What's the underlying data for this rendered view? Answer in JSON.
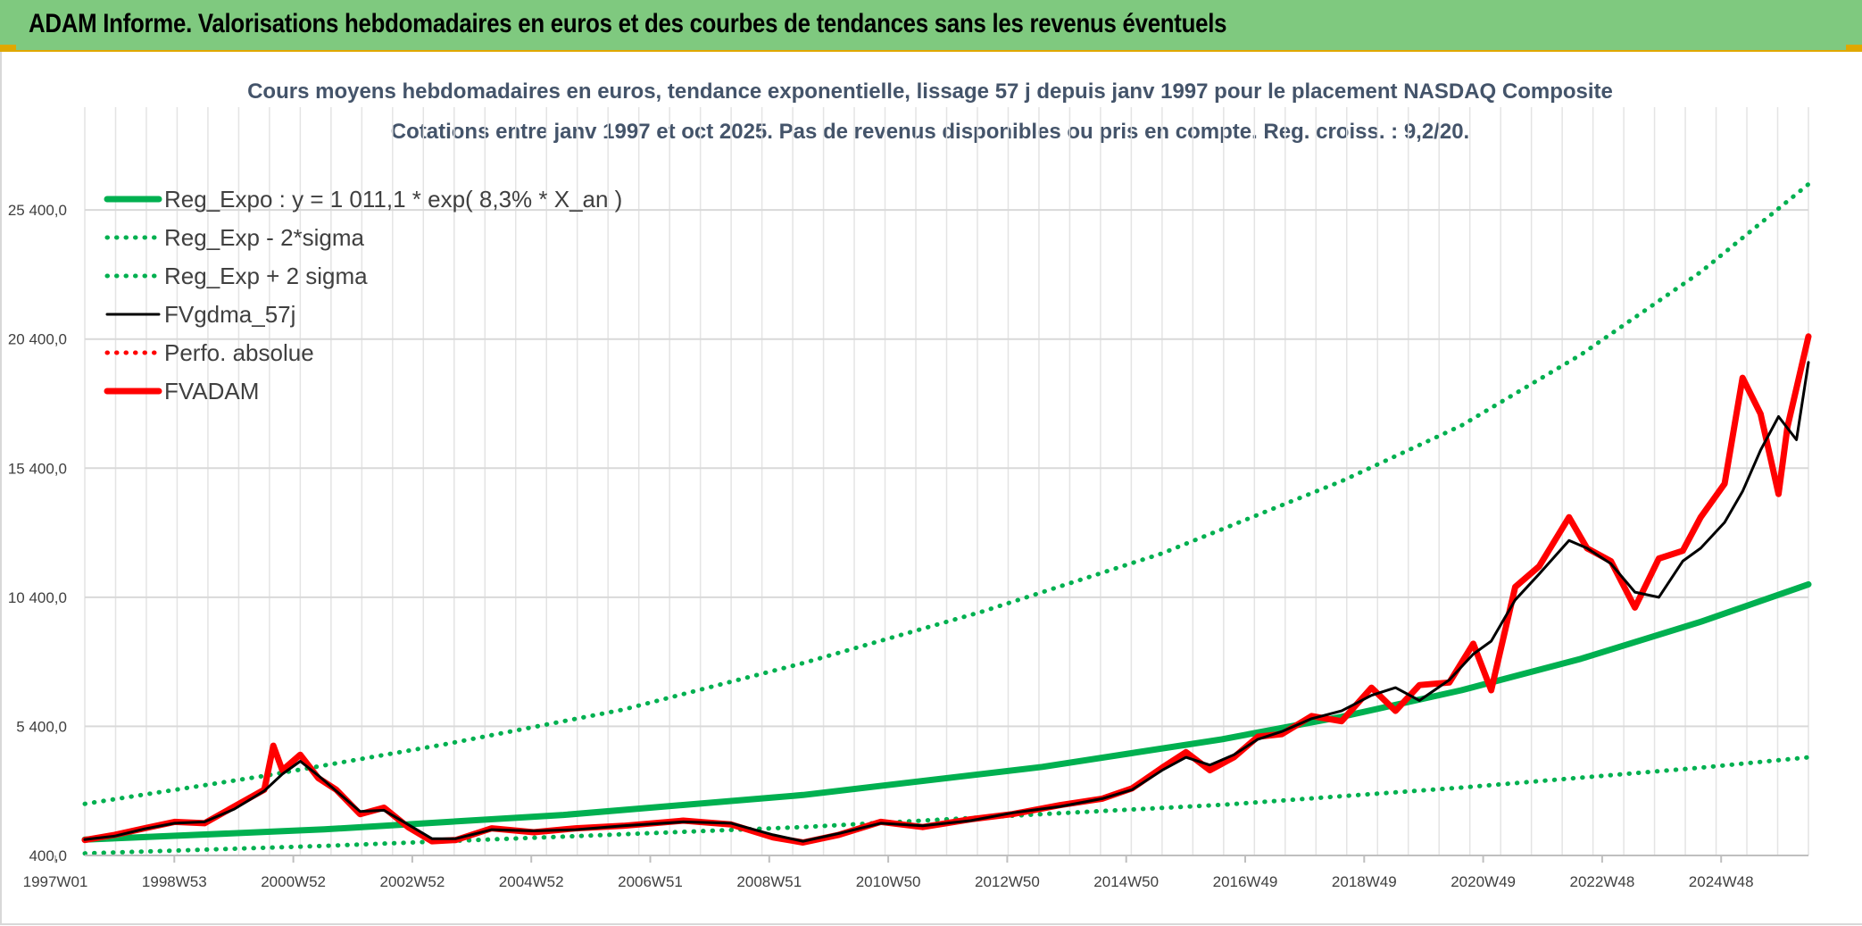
{
  "header": {
    "title": "ADAM Informe. Valorisations hebdomadaires en euros et des courbes de tendances sans les revenus éventuels"
  },
  "colors": {
    "banner": "#7fc97f",
    "regression": "#00b050",
    "gdma": "#000000",
    "adam": "#ff0000",
    "accent": "#e0a800"
  },
  "chart_data": {
    "type": "line",
    "title": "Cours moyens hebdomadaires en euros, tendance exponentielle, lissage 57 j depuis janv 1997 pour le placement NASDAQ Composite",
    "subtitle": "Cotations entre janv 1997 et oct 2025. Pas de revenus disponibles ou pris en compte. Reg. croiss. : 9,2/20.",
    "x_range": [
      1997.0,
      2025.8
    ],
    "x_ticks": [
      "1997W01",
      "1998W53",
      "2000W52",
      "2002W52",
      "2004W52",
      "2006W51",
      "2008W51",
      "2010W50",
      "2012W50",
      "2014W50",
      "2016W49",
      "2018W49",
      "2020W49",
      "2022W48",
      "2024W48"
    ],
    "y_ticks": [
      "400,0",
      "5 400,0",
      "10 400,0",
      "15 400,0",
      "20 400,0",
      "25 400,0"
    ],
    "y_tick_values": [
      400,
      5400,
      10400,
      15400,
      20400,
      25400
    ],
    "ylim": [
      400,
      28000
    ],
    "grid": true,
    "legend_position": "top-left",
    "series": [
      {
        "name": "Reg_Expo : y = 1 011,1 * exp( 8,3% *  X_an )",
        "style": "solid-thick",
        "color": "#00b050",
        "x": [
          1997.0,
          2001.0,
          2005.0,
          2009.0,
          2013.0,
          2016.0,
          2018.0,
          2020.0,
          2022.0,
          2024.0,
          2025.8
        ],
        "y": [
          1011,
          1410,
          1970,
          2740,
          3830,
          4900,
          5770,
          6800,
          8020,
          9450,
          10900
        ]
      },
      {
        "name": "Reg_Exp - 2*sigma",
        "style": "dotted",
        "color": "#00b050",
        "x": [
          1997.0,
          2001.0,
          2005.0,
          2009.0,
          2013.0,
          2016.0,
          2020.0,
          2024.0,
          2025.8
        ],
        "y": [
          480,
          770,
          1130,
          1500,
          2000,
          2360,
          3030,
          3800,
          4200
        ]
      },
      {
        "name": "Reg_Exp + 2 sigma",
        "style": "dotted",
        "color": "#00b050",
        "x": [
          1997.0,
          2000.0,
          2003.0,
          2006.0,
          2009.0,
          2012.0,
          2015.0,
          2018.0,
          2020.0,
          2022.0,
          2024.0,
          2025.8
        ],
        "y": [
          2400,
          3480,
          4700,
          6050,
          7850,
          9850,
          12100,
          14900,
          17050,
          19800,
          23000,
          26400
        ]
      },
      {
        "name": "FVgdma_57j",
        "style": "solid",
        "color": "#000000",
        "x": [
          1997.0,
          1997.5,
          1998.0,
          1998.5,
          1999.0,
          1999.5,
          2000.0,
          2000.3,
          2000.6,
          2000.9,
          2001.2,
          2001.6,
          2002.0,
          2002.4,
          2002.8,
          2003.2,
          2003.8,
          2004.5,
          2005.2,
          2006.0,
          2007.0,
          2007.8,
          2008.5,
          2009.0,
          2009.6,
          2010.3,
          2011.0,
          2011.8,
          2012.5,
          2013.3,
          2014.0,
          2014.5,
          2015.0,
          2015.4,
          2015.8,
          2016.2,
          2016.6,
          2017.0,
          2017.5,
          2018.0,
          2018.5,
          2018.9,
          2019.3,
          2019.8,
          2020.2,
          2020.5,
          2020.9,
          2021.3,
          2021.8,
          2022.1,
          2022.5,
          2022.9,
          2023.3,
          2023.7,
          2024.0,
          2024.4,
          2024.7,
          2025.0,
          2025.3,
          2025.6,
          2025.8
        ],
        "y": [
          1020,
          1150,
          1430,
          1650,
          1700,
          2200,
          2900,
          3550,
          4050,
          3500,
          2900,
          2100,
          2150,
          1600,
          1050,
          1050,
          1400,
          1350,
          1400,
          1550,
          1700,
          1650,
          1200,
          950,
          1250,
          1650,
          1550,
          1750,
          2050,
          2300,
          2600,
          2950,
          3700,
          4200,
          3900,
          4300,
          4900,
          5200,
          5700,
          6000,
          6600,
          6900,
          6400,
          7200,
          8200,
          8700,
          10300,
          11300,
          12600,
          12300,
          11700,
          10600,
          10400,
          11800,
          12300,
          13300,
          14500,
          16100,
          17400,
          16500,
          19500
        ]
      },
      {
        "name": "Perfo. absolue",
        "style": "dotted",
        "color": "#ff0000",
        "x": [],
        "y": []
      },
      {
        "name": "FVADAM",
        "style": "solid-thick",
        "color": "#ff0000",
        "x": [
          1997.0,
          1997.5,
          1998.0,
          1998.5,
          1999.0,
          1999.5,
          2000.0,
          2000.15,
          2000.3,
          2000.6,
          2000.9,
          2001.2,
          2001.6,
          2002.0,
          2002.4,
          2002.8,
          2003.2,
          2003.8,
          2004.5,
          2005.2,
          2006.0,
          2007.0,
          2007.8,
          2008.5,
          2009.0,
          2009.6,
          2010.3,
          2011.0,
          2011.8,
          2012.5,
          2013.3,
          2014.0,
          2014.5,
          2015.0,
          2015.4,
          2015.8,
          2016.2,
          2016.6,
          2017.0,
          2017.5,
          2018.0,
          2018.5,
          2018.9,
          2019.3,
          2019.8,
          2020.2,
          2020.5,
          2020.9,
          2021.3,
          2021.8,
          2022.1,
          2022.5,
          2022.9,
          2023.3,
          2023.7,
          2024.0,
          2024.4,
          2024.7,
          2025.0,
          2025.3,
          2025.45,
          2025.6,
          2025.8
        ],
        "y": [
          1000,
          1200,
          1450,
          1700,
          1650,
          2300,
          2950,
          4650,
          3700,
          4300,
          3400,
          2950,
          2000,
          2250,
          1500,
          950,
          1000,
          1450,
          1300,
          1450,
          1550,
          1750,
          1600,
          1100,
          900,
          1200,
          1700,
          1500,
          1800,
          2000,
          2350,
          2600,
          3000,
          3800,
          4400,
          3700,
          4200,
          5000,
          5100,
          5800,
          5600,
          6900,
          6000,
          7000,
          7100,
          8600,
          6800,
          10800,
          11600,
          13500,
          12300,
          11800,
          10000,
          11900,
          12200,
          13500,
          14800,
          18900,
          17500,
          14400,
          17000,
          18500,
          20500
        ]
      }
    ]
  }
}
